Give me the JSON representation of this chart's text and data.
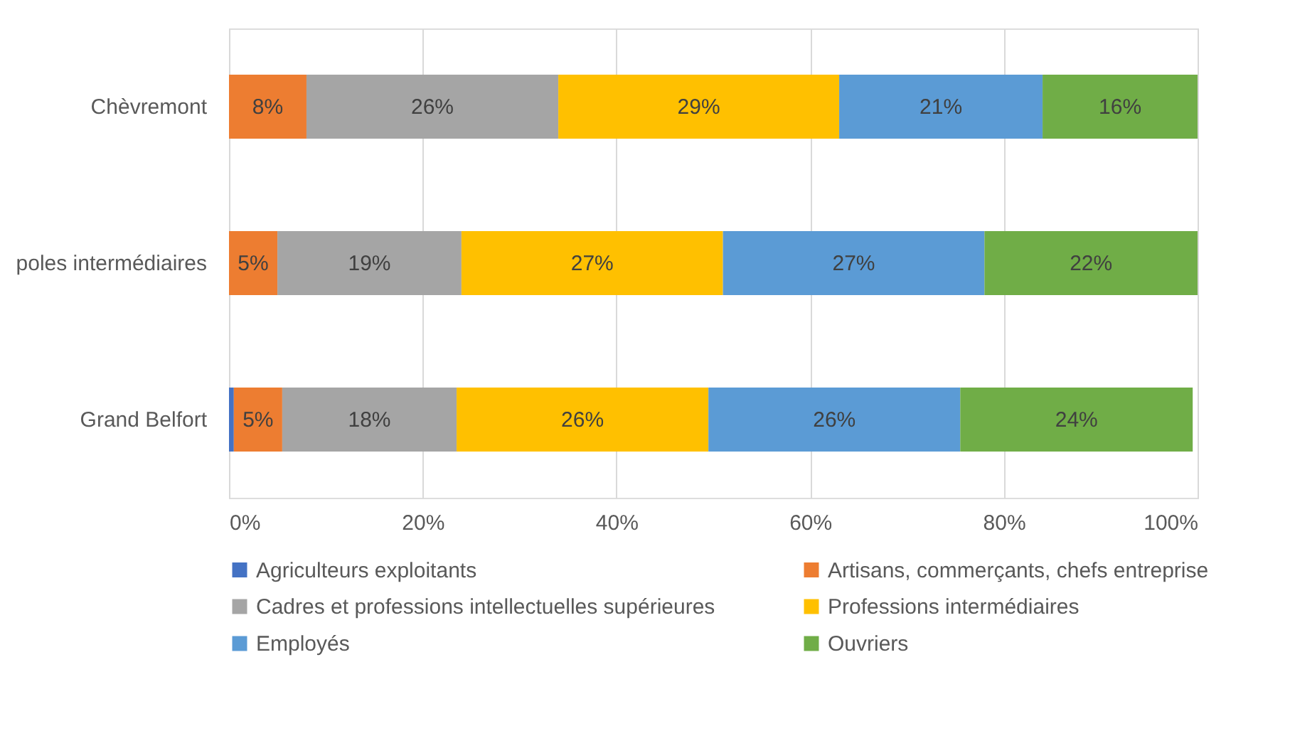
{
  "chart_data": {
    "type": "bar",
    "orientation": "horizontal",
    "stacked": true,
    "categories": [
      "Chèvremont",
      "poles intermédiaires",
      "Grand Belfort"
    ],
    "series": [
      {
        "name": "Agriculteurs exploitants",
        "color": "#4472c4",
        "values": [
          0,
          0,
          0.5
        ],
        "value_labels": [
          null,
          null,
          null
        ]
      },
      {
        "name": "Artisans, commerçants, chefs entreprise",
        "color": "#ed7d31",
        "values": [
          8,
          5,
          5
        ],
        "value_labels": [
          "8%",
          "5%",
          "5%"
        ]
      },
      {
        "name": "Cadres et professions intellectuelles supérieures",
        "color": "#a5a5a5",
        "values": [
          26,
          19,
          18
        ],
        "value_labels": [
          "26%",
          "19%",
          "18%"
        ]
      },
      {
        "name": "Professions intermédiaires",
        "color": "#ffc000",
        "values": [
          29,
          27,
          26
        ],
        "value_labels": [
          "29%",
          "27%",
          "26%"
        ]
      },
      {
        "name": "Employés",
        "color": "#5b9bd5",
        "values": [
          21,
          27,
          26
        ],
        "value_labels": [
          "21%",
          "27%",
          "26%"
        ]
      },
      {
        "name": "Ouvriers",
        "color": "#70ad47",
        "values": [
          16,
          22,
          24
        ],
        "value_labels": [
          "16%",
          "22%",
          "24%"
        ]
      }
    ],
    "xlim": [
      0,
      100
    ],
    "xticks": [
      {
        "value": 0,
        "label": "0%"
      },
      {
        "value": 20,
        "label": "20%"
      },
      {
        "value": 40,
        "label": "40%"
      },
      {
        "value": 60,
        "label": "60%"
      },
      {
        "value": 80,
        "label": "80%"
      },
      {
        "value": 100,
        "label": "100%"
      }
    ],
    "grid": "x",
    "legend": "bottom"
  }
}
